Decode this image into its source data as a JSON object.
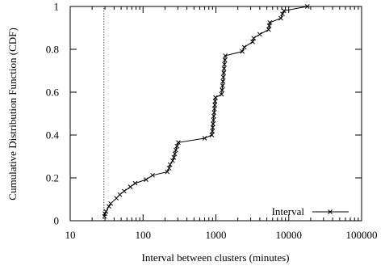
{
  "chart_data": {
    "type": "line",
    "xscale": "log",
    "xlim": [
      10,
      100000
    ],
    "ylim": [
      0,
      1
    ],
    "xlabel": "Interval between clusters (minutes)",
    "ylabel": "Cumulative Distribution Function (CDF)",
    "xticks": [
      10,
      100,
      1000,
      10000,
      100000
    ],
    "xtick_labels": [
      "10",
      "100",
      "1000",
      "10000",
      "100000"
    ],
    "yticks": [
      0,
      0.2,
      0.4,
      0.6,
      0.8,
      1
    ],
    "ytick_labels": [
      "0",
      "0.2",
      "0.4",
      "0.6",
      "0.8",
      "1"
    ],
    "grid": false,
    "legend_position": "bottom-right",
    "reference_line": {
      "x": 29
    },
    "series": [
      {
        "name": "Interval",
        "marker": "x",
        "color": "#000000",
        "points": [
          [
            29.5,
            0.02
          ],
          [
            30,
            0.033
          ],
          [
            31,
            0.043
          ],
          [
            34,
            0.067
          ],
          [
            36,
            0.08
          ],
          [
            43,
            0.105
          ],
          [
            48,
            0.122
          ],
          [
            55,
            0.138
          ],
          [
            67,
            0.158
          ],
          [
            78,
            0.175
          ],
          [
            110,
            0.192
          ],
          [
            135,
            0.212
          ],
          [
            215,
            0.228
          ],
          [
            228,
            0.245
          ],
          [
            235,
            0.262
          ],
          [
            255,
            0.28
          ],
          [
            265,
            0.295
          ],
          [
            273,
            0.312
          ],
          [
            282,
            0.33
          ],
          [
            292,
            0.348
          ],
          [
            305,
            0.365
          ],
          [
            700,
            0.385
          ],
          [
            880,
            0.4
          ],
          [
            895,
            0.418
          ],
          [
            905,
            0.435
          ],
          [
            915,
            0.452
          ],
          [
            925,
            0.47
          ],
          [
            935,
            0.488
          ],
          [
            945,
            0.505
          ],
          [
            955,
            0.522
          ],
          [
            965,
            0.54
          ],
          [
            975,
            0.558
          ],
          [
            985,
            0.575
          ],
          [
            1195,
            0.59
          ],
          [
            1215,
            0.61
          ],
          [
            1235,
            0.63
          ],
          [
            1250,
            0.65
          ],
          [
            1265,
            0.67
          ],
          [
            1280,
            0.69
          ],
          [
            1295,
            0.71
          ],
          [
            1310,
            0.73
          ],
          [
            1330,
            0.75
          ],
          [
            1345,
            0.77
          ],
          [
            2300,
            0.79
          ],
          [
            2450,
            0.81
          ],
          [
            3200,
            0.835
          ],
          [
            3300,
            0.852
          ],
          [
            4000,
            0.87
          ],
          [
            5300,
            0.892
          ],
          [
            5400,
            0.91
          ],
          [
            5500,
            0.925
          ],
          [
            7800,
            0.945
          ],
          [
            8200,
            0.965
          ],
          [
            8600,
            0.98
          ],
          [
            18000,
            1.0
          ]
        ]
      }
    ]
  }
}
